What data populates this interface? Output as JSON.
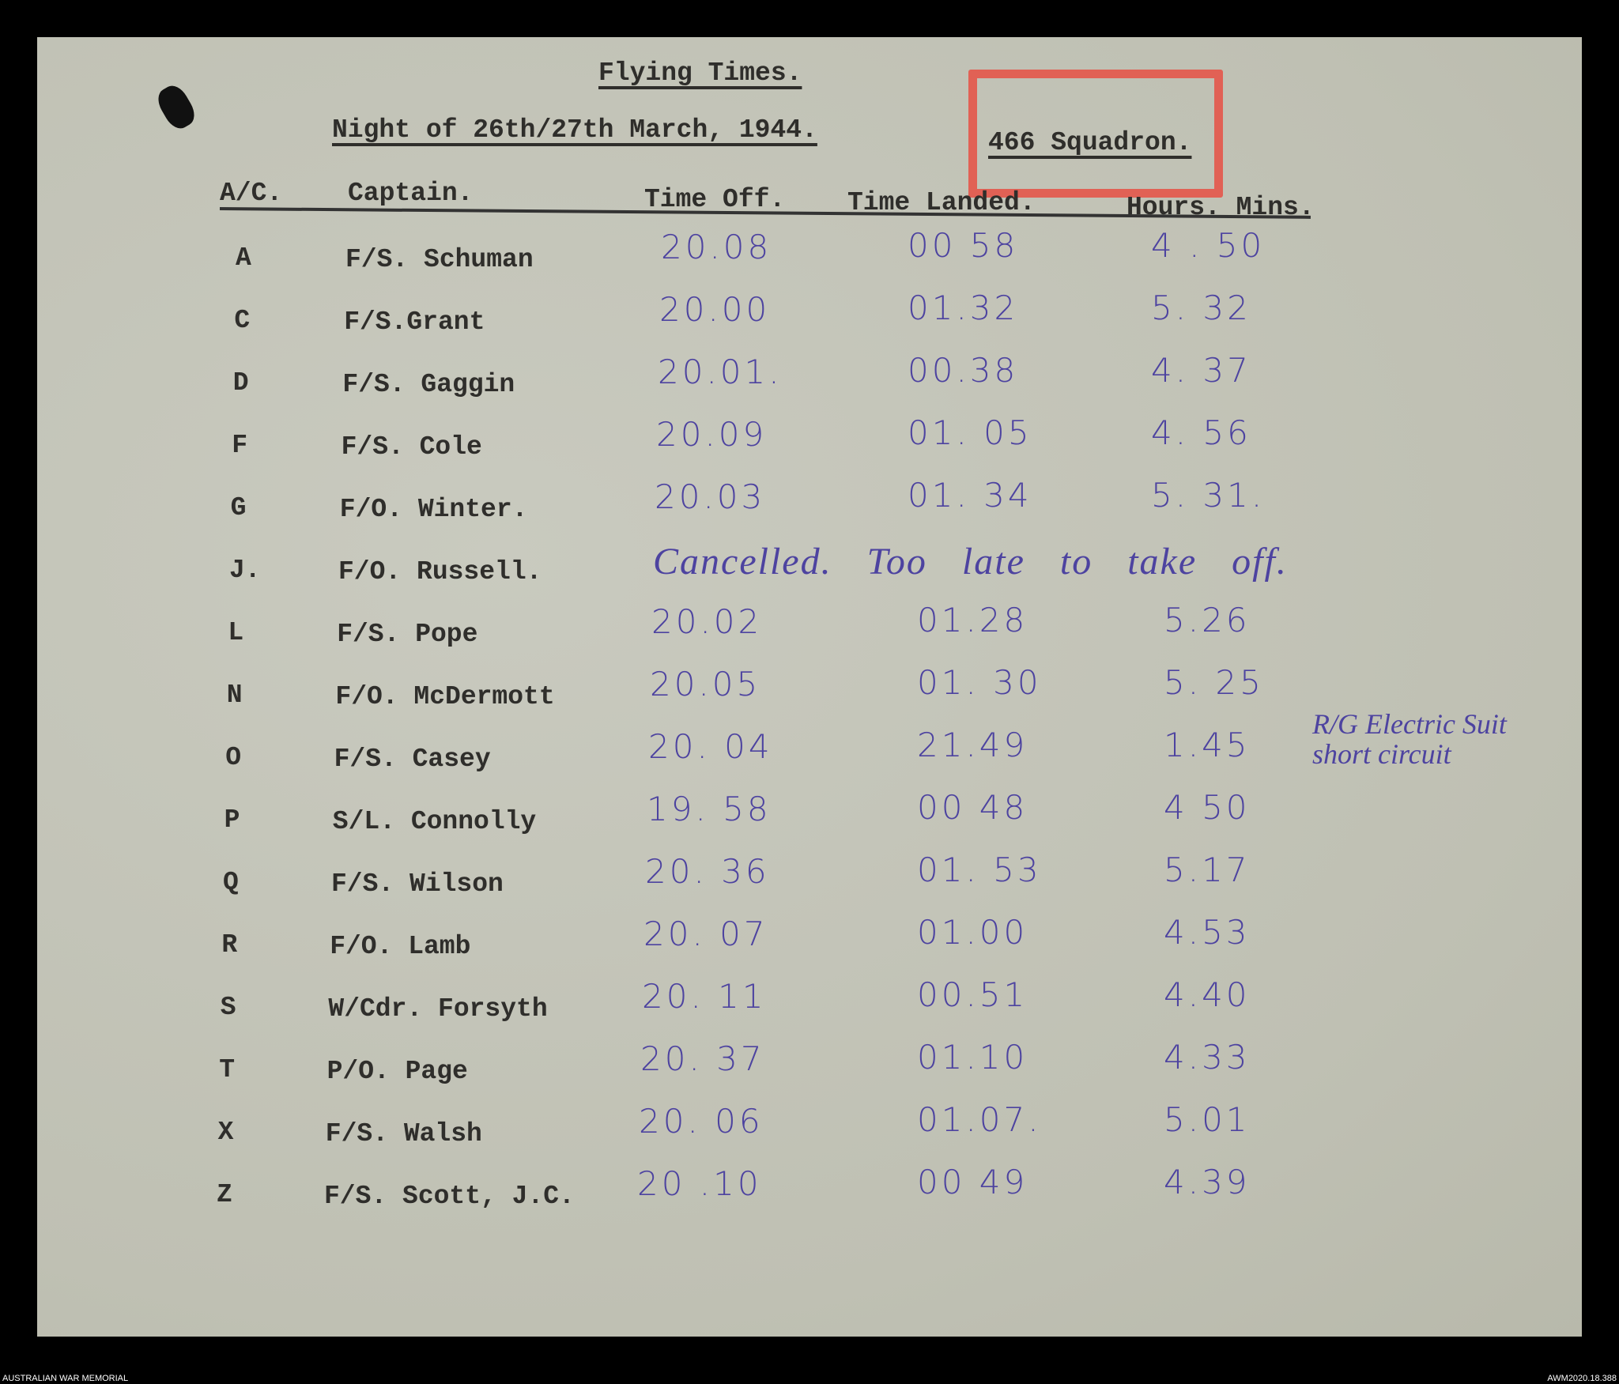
{
  "document": {
    "title": "Flying Times.",
    "subtitle": "Night of 26th/27th March, 1944.",
    "squadron": "466 Squadron.",
    "highlight_color": "#e4574a",
    "ink_color": "#4d43a0",
    "columns": [
      "A/C.",
      "Captain.",
      "Time Off.",
      "Time Landed.",
      "Hours. Mins."
    ],
    "rows": [
      {
        "ac": "A",
        "captain": "F/S. Schuman",
        "off": "20.08",
        "landed": "00 58",
        "hours": "4 . 50"
      },
      {
        "ac": "C",
        "captain": "F/S.Grant",
        "off": "20.00",
        "landed": "01.32",
        "hours": "5. 32"
      },
      {
        "ac": "D",
        "captain": "F/S. Gaggin",
        "off": "20.01.",
        "landed": "00.38",
        "hours": "4. 37"
      },
      {
        "ac": "F",
        "captain": "F/S. Cole",
        "off": "20.09",
        "landed": "01. 05",
        "hours": "4. 56"
      },
      {
        "ac": "G",
        "captain": "F/O. Winter.",
        "off": "20.03",
        "landed": "01. 34",
        "hours": "5. 31."
      },
      {
        "ac": "J.",
        "captain": "F/O. Russell.",
        "off": "Cancelled.  Too late to take off.",
        "landed": "",
        "hours": ""
      },
      {
        "ac": "L",
        "captain": "F/S. Pope",
        "off": "20.02",
        "landed": "01.28",
        "hours": "5.26"
      },
      {
        "ac": "N",
        "captain": "F/O. McDermott",
        "off": "20.05",
        "landed": "01. 30",
        "hours": "5. 25"
      },
      {
        "ac": "O",
        "captain": "F/S. Casey",
        "off": "20. 04",
        "landed": "21.49",
        "hours": "1.45"
      },
      {
        "ac": "P",
        "captain": "S/L. Connolly",
        "off": "19. 58",
        "landed": "00 48",
        "hours": "4 50"
      },
      {
        "ac": "Q",
        "captain": "F/S. Wilson",
        "off": "20. 36",
        "landed": "01. 53",
        "hours": "5.17"
      },
      {
        "ac": "R",
        "captain": "F/O. Lamb",
        "off": "20. 07",
        "landed": "01.00",
        "hours": "4.53"
      },
      {
        "ac": "S",
        "captain": "W/Cdr. Forsyth",
        "off": "20. 11",
        "landed": "00.51",
        "hours": "4.40"
      },
      {
        "ac": "T",
        "captain": "P/O. Page",
        "off": "20. 37",
        "landed": "01.10",
        "hours": "4.33"
      },
      {
        "ac": "X",
        "captain": "F/S. Walsh",
        "off": "20. 06",
        "landed": "01.07.",
        "hours": "5.01"
      },
      {
        "ac": "Z",
        "captain": "F/S. Scott, J.C.",
        "off": "20 .10",
        "landed": "00 49",
        "hours": "4.39"
      }
    ],
    "note_line1": "R/G Electric Suit",
    "note_line2": "short circuit"
  },
  "footer": {
    "left": "AUSTRALIAN WAR MEMORIAL",
    "right": "AWM2020.18.388"
  }
}
